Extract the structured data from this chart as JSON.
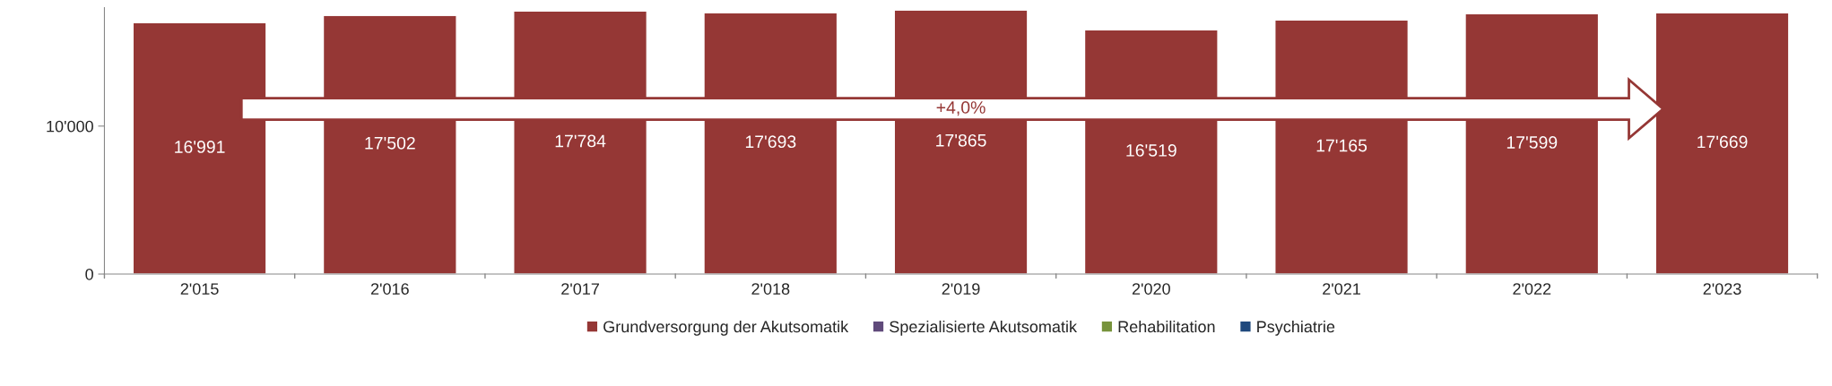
{
  "chart_data": {
    "type": "bar",
    "stacked": true,
    "categories": [
      "2'015",
      "2'016",
      "2'017",
      "2'018",
      "2'019",
      "2'020",
      "2'021",
      "2'022",
      "2'023"
    ],
    "series": [
      {
        "name": "Grundversorgung der Akutsomatik",
        "color": "#953735",
        "values": [
          16991,
          17502,
          17784,
          17693,
          17865,
          16519,
          17165,
          17599,
          17669
        ],
        "value_labels": [
          "16'991",
          "17'502",
          "17'784",
          "17'693",
          "17'865",
          "16'519",
          "17'165",
          "17'599",
          "17'669"
        ]
      },
      {
        "name": "Spezialisierte Akutsomatik",
        "color": "#604a7b",
        "values": [
          null,
          null,
          null,
          null,
          null,
          null,
          null,
          null,
          null
        ]
      },
      {
        "name": "Rehabilitation",
        "color": "#77933c",
        "values": [
          null,
          null,
          null,
          null,
          null,
          null,
          null,
          null,
          null
        ]
      },
      {
        "name": "Psychiatrie",
        "color": "#1f497d",
        "values": [
          null,
          null,
          null,
          null,
          null,
          null,
          null,
          null,
          null
        ]
      }
    ],
    "ylim": [
      0,
      18000
    ],
    "yticks": [
      0,
      {
        "value": 10000,
        "label": "10'000"
      }
    ],
    "grid": false,
    "legend": "bottom",
    "annotations": [
      "+4,0%"
    ]
  }
}
